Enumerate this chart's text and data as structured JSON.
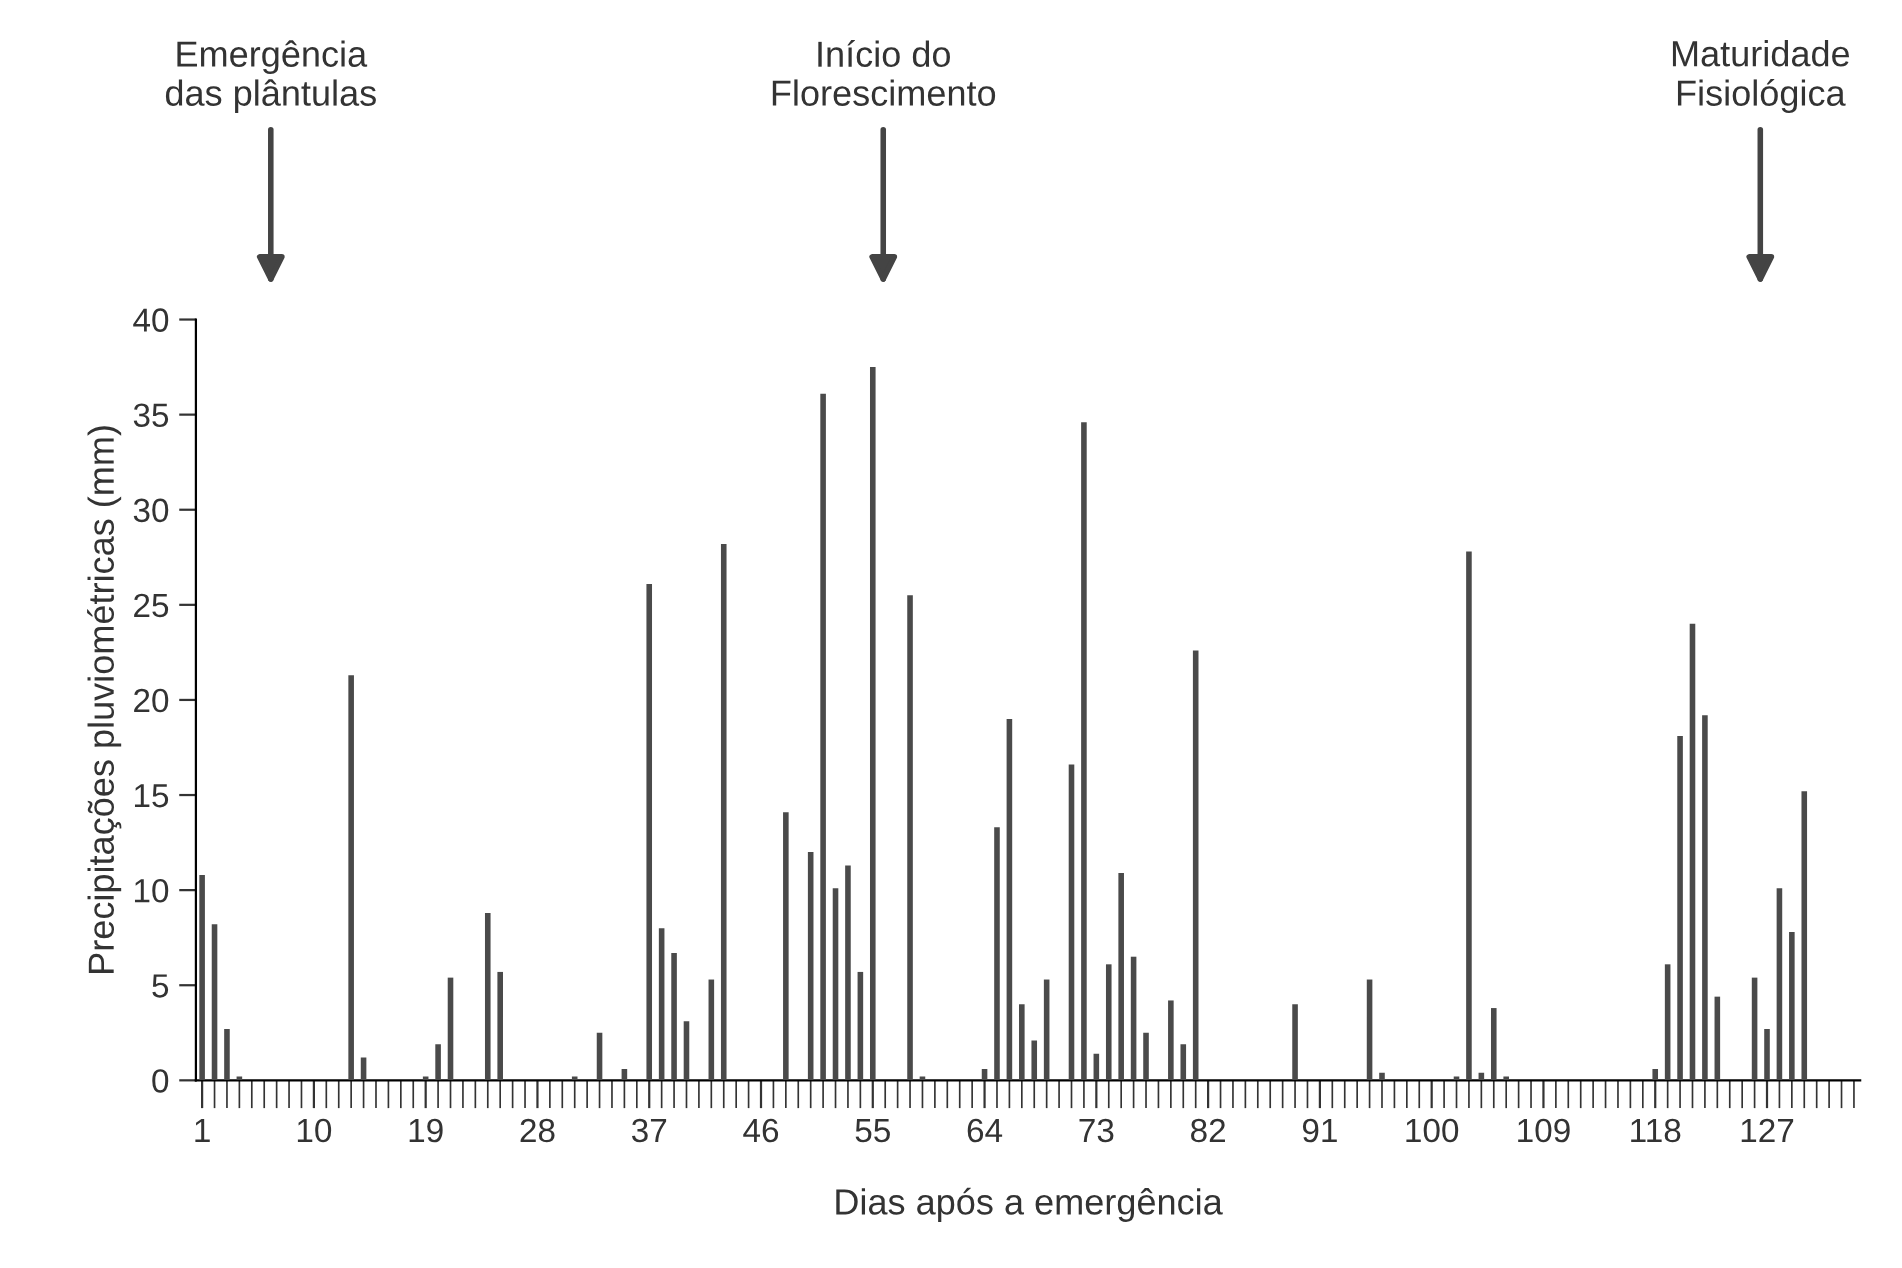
{
  "chart_data": {
    "type": "bar",
    "xlabel": "Dias após a emergência",
    "ylabel": "Precipitações pluviométricas (mm)",
    "x": [
      1,
      2,
      3,
      4,
      5,
      6,
      7,
      8,
      9,
      10,
      11,
      12,
      13,
      14,
      15,
      16,
      17,
      18,
      19,
      20,
      21,
      22,
      23,
      24,
      25,
      26,
      27,
      28,
      29,
      30,
      31,
      32,
      33,
      34,
      35,
      36,
      37,
      38,
      39,
      40,
      41,
      42,
      43,
      44,
      45,
      46,
      47,
      48,
      49,
      50,
      51,
      52,
      53,
      54,
      55,
      56,
      57,
      58,
      59,
      60,
      61,
      62,
      63,
      64,
      65,
      66,
      67,
      68,
      69,
      70,
      71,
      72,
      73,
      74,
      75,
      76,
      77,
      78,
      79,
      80,
      81,
      82,
      83,
      84,
      85,
      86,
      87,
      88,
      89,
      90,
      91,
      92,
      93,
      94,
      95,
      96,
      97,
      98,
      99,
      100,
      101,
      102,
      103,
      104,
      105,
      106,
      107,
      108,
      109,
      110,
      111,
      112,
      113,
      114,
      115,
      116,
      117,
      118,
      119,
      120,
      121,
      122,
      123,
      124,
      125,
      126,
      127,
      128,
      129,
      130,
      131,
      132,
      133,
      134
    ],
    "values": [
      10.8,
      8.2,
      2.7,
      0.2,
      0,
      0,
      0,
      0,
      0,
      0,
      0,
      0,
      21.3,
      1.2,
      0,
      0,
      0,
      0,
      0.2,
      1.9,
      5.4,
      0,
      0,
      8.8,
      5.7,
      0,
      0,
      0,
      0,
      0,
      0.2,
      0,
      2.5,
      0,
      0.6,
      0,
      26.1,
      8.0,
      6.7,
      3.1,
      0,
      5.3,
      28.2,
      0,
      0,
      0,
      0,
      14.1,
      0,
      12.0,
      36.1,
      10.1,
      11.3,
      5.7,
      37.5,
      0,
      0,
      25.5,
      0.2,
      0,
      0,
      0,
      0,
      0.6,
      13.3,
      19.0,
      4.0,
      2.1,
      5.3,
      0,
      16.6,
      34.6,
      1.4,
      6.1,
      10.9,
      6.5,
      2.5,
      0,
      4.2,
      1.9,
      22.6,
      0,
      0,
      0,
      0,
      0,
      0,
      0,
      4.0,
      0,
      0,
      0,
      0,
      0,
      5.3,
      0.4,
      0,
      0,
      0,
      0,
      0,
      0.2,
      27.8,
      0.4,
      3.8,
      0.2,
      0,
      0,
      0,
      0,
      0,
      0,
      0,
      0,
      0,
      0,
      0,
      0.6,
      6.1,
      18.1,
      24.0,
      19.2,
      4.4,
      0,
      0,
      5.4,
      2.7,
      10.1,
      7.8,
      15.2,
      0,
      0,
      0,
      0
    ],
    "color": "#4a4a4a",
    "xlim": [
      0.5,
      134.5
    ],
    "xticks": [
      1,
      10,
      19,
      28,
      37,
      46,
      55,
      64,
      73,
      82,
      91,
      100,
      109,
      118,
      127
    ],
    "ylim": [
      0,
      40
    ],
    "yticks": [
      0,
      5,
      10,
      15,
      20,
      25,
      30,
      35,
      40
    ],
    "grid": false,
    "annotations": [
      "Emergência\ndas plântulas",
      "Início do\nFlorescimento",
      "Maturidade\nFisiológica"
    ]
  }
}
